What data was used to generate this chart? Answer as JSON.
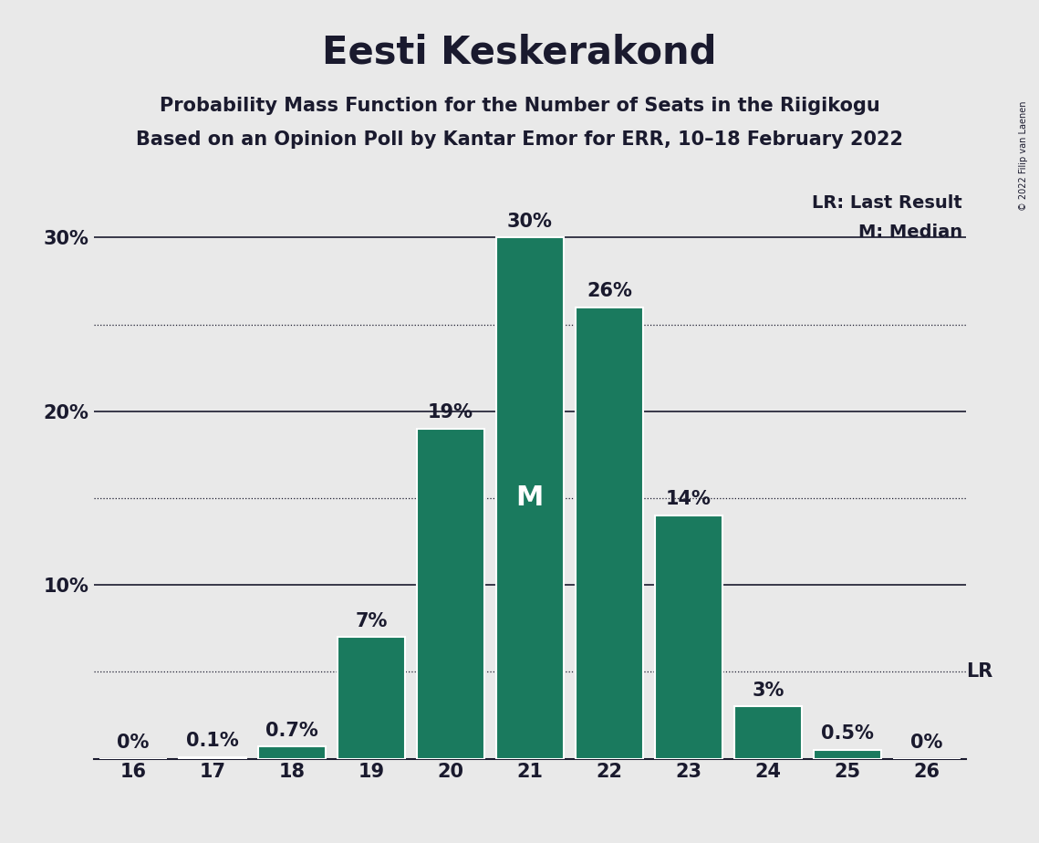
{
  "title": "Eesti Keskerakond",
  "subtitle1": "Probability Mass Function for the Number of Seats in the Riigikogu",
  "subtitle2": "Based on an Opinion Poll by Kantar Emor for ERR, 10–18 February 2022",
  "copyright": "© 2022 Filip van Laenen",
  "categories": [
    16,
    17,
    18,
    19,
    20,
    21,
    22,
    23,
    24,
    25,
    26
  ],
  "values": [
    0.0,
    0.1,
    0.7,
    7.0,
    19.0,
    30.0,
    26.0,
    14.0,
    3.0,
    0.5,
    0.0
  ],
  "bar_color": "#1a7a5e",
  "bar_edge_color": "#ffffff",
  "background_color": "#e9e9e9",
  "text_color": "#1a1a2e",
  "median_seat": 21,
  "last_result_seat": 26,
  "median_label": "M",
  "lr_label": "LR",
  "legend_lr": "LR: Last Result",
  "legend_m": "M: Median",
  "ylim_max": 33,
  "title_fontsize": 30,
  "subtitle_fontsize": 15,
  "tick_fontsize": 15,
  "bar_label_fontsize": 15,
  "legend_fontsize": 14,
  "m_fontsize": 22,
  "copyright_fontsize": 7
}
